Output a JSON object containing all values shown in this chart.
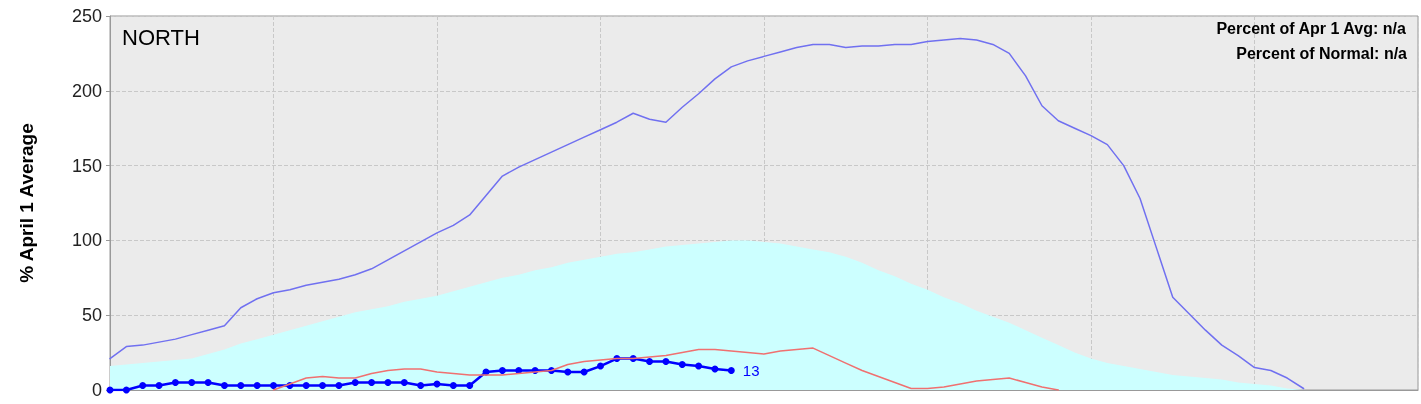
{
  "chart_data": {
    "type": "line",
    "ylabel": "% April 1 Average",
    "annotations": [
      "NORTH",
      "Percent of Apr 1 Avg: n/a",
      "Percent of Normal: n/a"
    ],
    "categories": [
      null,
      null,
      null,
      null,
      null,
      null,
      null,
      null,
      null,
      null,
      null,
      null,
      null,
      null,
      null,
      null,
      null,
      null,
      null,
      null,
      null,
      null,
      null,
      null,
      null,
      null,
      null,
      null,
      null,
      null,
      null,
      null,
      null,
      null,
      null,
      null,
      null,
      null,
      null,
      null,
      null,
      null,
      null,
      null,
      null,
      null,
      null,
      null,
      null,
      null,
      null,
      null,
      null,
      null,
      null,
      null,
      null,
      null,
      null,
      null,
      null,
      null,
      null,
      null,
      null,
      null,
      null,
      null,
      null,
      null,
      null,
      null,
      null,
      null,
      null,
      null,
      null,
      null,
      null,
      null,
      null
    ],
    "ylim": [
      0,
      250
    ],
    "yticks": [
      0,
      50,
      100,
      150,
      200,
      250
    ],
    "grid": true,
    "series": [
      {
        "type": "area",
        "color": "#ccffff",
        "values": [
          16,
          17,
          18,
          19,
          20,
          21,
          24,
          27,
          31,
          34,
          37,
          40,
          43,
          46,
          49,
          52,
          54,
          56,
          59,
          61,
          63,
          66,
          69,
          72,
          75,
          77,
          80,
          82,
          85,
          87,
          89,
          91,
          92,
          94,
          96,
          97,
          98,
          99,
          100,
          100,
          99,
          98,
          96,
          94,
          92,
          89,
          85,
          80,
          76,
          71,
          67,
          62,
          58,
          53,
          49,
          45,
          40,
          35,
          30,
          25,
          21,
          18,
          16,
          14,
          12,
          10,
          9,
          8,
          7,
          5,
          4,
          3,
          1,
          0,
          0,
          0,
          0,
          0,
          0,
          0,
          0
        ]
      },
      {
        "color": "#7070f0",
        "values": [
          21,
          29,
          30,
          32,
          34,
          37,
          40,
          43,
          55,
          61,
          65,
          67,
          70,
          72,
          74,
          77,
          81,
          87,
          93,
          99,
          105,
          110,
          117,
          130,
          143,
          149,
          154,
          159,
          164,
          169,
          174,
          179,
          185,
          181,
          179,
          189,
          198,
          208,
          216,
          220,
          223,
          226,
          229,
          231,
          231,
          229,
          230,
          230,
          231,
          231,
          233,
          234,
          235,
          234,
          231,
          225,
          210,
          190,
          180,
          175,
          170,
          164,
          150,
          128,
          95,
          62,
          51,
          40,
          30,
          23,
          15,
          13,
          8,
          1,
          null,
          null,
          null,
          null,
          null,
          null,
          null
        ]
      },
      {
        "color": "#f07070",
        "values": [
          null,
          null,
          null,
          null,
          null,
          null,
          null,
          null,
          null,
          null,
          0,
          4,
          8,
          9,
          8,
          8,
          11,
          13,
          14,
          14,
          12,
          11,
          10,
          10,
          10,
          11,
          12,
          13,
          17,
          19,
          20,
          21,
          21,
          22,
          23,
          25,
          27,
          27,
          26,
          25,
          24,
          26,
          27,
          28,
          23,
          18,
          13,
          9,
          5,
          1,
          1,
          2,
          4,
          6,
          7,
          8,
          5,
          2,
          0,
          null,
          null,
          null,
          null,
          null,
          null,
          null,
          null,
          null,
          null,
          null,
          null,
          null,
          null,
          null,
          null,
          null,
          null,
          null,
          null,
          null,
          null
        ]
      },
      {
        "color": "#0000ff",
        "marker": "circle",
        "values": [
          0,
          0,
          3,
          3,
          5,
          5,
          5,
          3,
          3,
          3,
          3,
          3,
          3,
          3,
          3,
          5,
          5,
          5,
          5,
          3,
          4,
          3,
          3,
          12,
          13,
          13,
          13,
          13,
          12,
          12,
          16,
          21,
          21,
          19,
          19,
          17,
          16,
          14,
          13,
          null,
          null,
          null,
          null,
          null,
          null,
          null,
          null,
          null,
          null,
          null,
          null,
          null,
          null,
          null,
          null,
          null,
          null,
          null,
          null,
          null,
          null,
          null,
          null,
          null,
          null,
          null,
          null,
          null,
          null,
          null,
          null,
          null,
          null,
          null,
          null,
          null,
          null,
          null,
          null,
          null,
          null
        ],
        "value_labels": [
          null,
          null,
          null,
          null,
          null,
          null,
          null,
          null,
          null,
          null,
          null,
          null,
          null,
          null,
          null,
          null,
          null,
          null,
          null,
          null,
          null,
          null,
          null,
          null,
          null,
          null,
          null,
          null,
          null,
          null,
          null,
          null,
          null,
          null,
          null,
          null,
          null,
          null,
          "13",
          null,
          null,
          null,
          null,
          null,
          null,
          null,
          null,
          null,
          null,
          null,
          null,
          null,
          null,
          null,
          null,
          null,
          null,
          null,
          null,
          null,
          null,
          null,
          null,
          null,
          null,
          null,
          null,
          null,
          null,
          null,
          null,
          null,
          null,
          null,
          null,
          null,
          null,
          null,
          null,
          null,
          null
        ]
      }
    ]
  }
}
